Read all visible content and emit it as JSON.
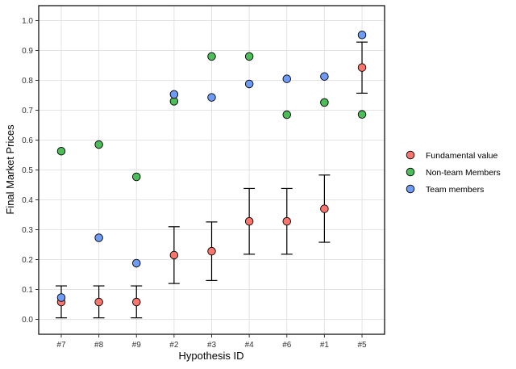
{
  "chart_data": {
    "type": "scatter",
    "title": "",
    "xlabel": "Hypothesis ID",
    "ylabel": "Final Market Prices",
    "categories": [
      "#7",
      "#8",
      "#9",
      "#2",
      "#3",
      "#4",
      "#6",
      "#1",
      "#5"
    ],
    "ylim": [
      -0.05,
      1.05
    ],
    "yticks": [
      0.0,
      0.1,
      0.2,
      0.3,
      0.4,
      0.5,
      0.6,
      0.7,
      0.8,
      0.9,
      1.0
    ],
    "ytick_labels": [
      "0.0",
      "0.1",
      "0.2",
      "0.3",
      "0.4",
      "0.5",
      "0.6",
      "0.7",
      "0.8",
      "0.9",
      "1.0"
    ],
    "grid": true,
    "legend_position": "right",
    "series": [
      {
        "name": "Fundamental value",
        "color": "#F8766D",
        "values": [
          0.058,
          0.058,
          0.058,
          0.215,
          0.228,
          0.328,
          0.328,
          0.37,
          0.843
        ],
        "error_low": [
          0.005,
          0.005,
          0.005,
          0.12,
          0.13,
          0.218,
          0.218,
          0.258,
          0.757
        ],
        "error_high": [
          0.112,
          0.112,
          0.112,
          0.31,
          0.326,
          0.438,
          0.438,
          0.483,
          0.928
        ]
      },
      {
        "name": "Non-team Members",
        "color": "#4DBD5A",
        "values": [
          0.563,
          0.585,
          0.477,
          0.73,
          0.88,
          0.88,
          0.685,
          0.726,
          0.686
        ]
      },
      {
        "name": "Team members",
        "color": "#6E9BF5",
        "values": [
          0.073,
          0.273,
          0.188,
          0.753,
          0.743,
          0.788,
          0.805,
          0.813,
          0.952
        ]
      }
    ]
  }
}
